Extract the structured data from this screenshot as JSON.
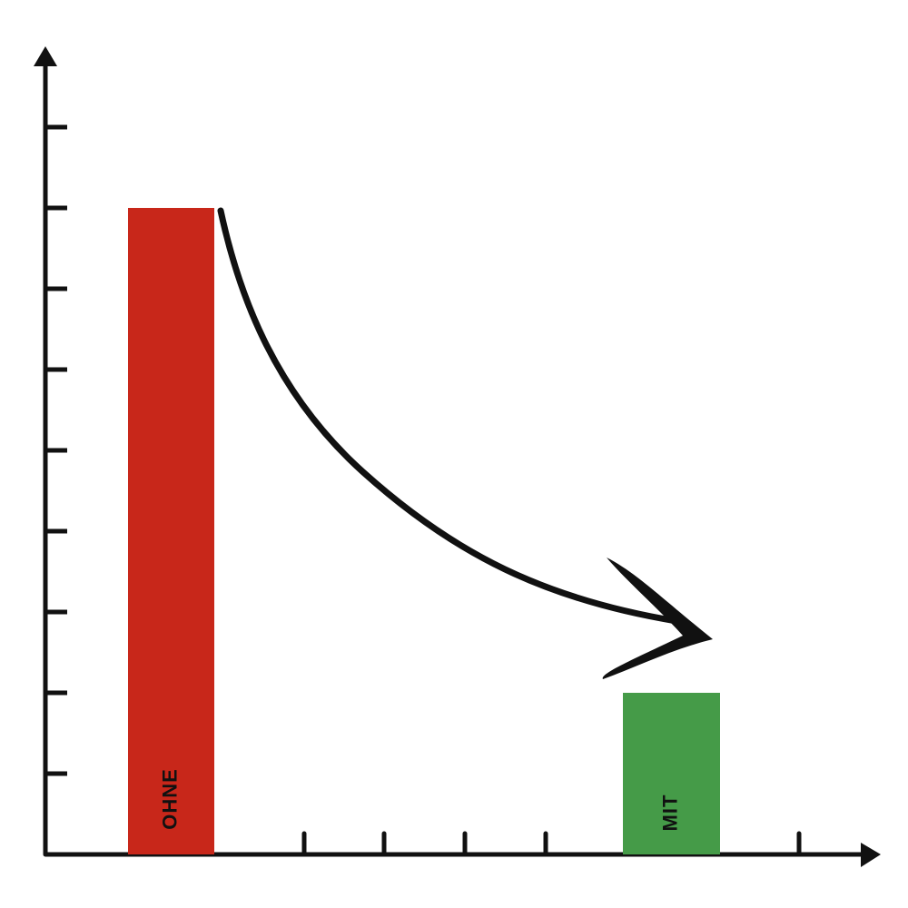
{
  "chart_data": {
    "type": "bar",
    "categories": [
      "OHNE",
      "MIT"
    ],
    "values": [
      8,
      2
    ],
    "colors": [
      "#c8271a",
      "#459b48"
    ],
    "ylim": [
      0,
      10
    ],
    "yticks": [
      1,
      2,
      3,
      4,
      5,
      6,
      7,
      8,
      9
    ],
    "grid": false
  }
}
